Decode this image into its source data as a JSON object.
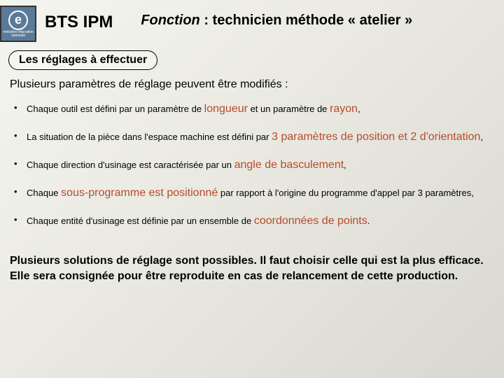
{
  "header": {
    "logo_letter": "e",
    "logo_caption": "ministère\néducation\nnationale",
    "title": "BTS IPM",
    "subtitle_prefix": "Fonction",
    "subtitle_rest": " : technicien méthode « atelier »"
  },
  "section_label": "Les réglages à effectuer",
  "intro": "Plusieurs paramètres de réglage peuvent être modifiés :",
  "bullets": [
    {
      "pre": "Chaque outil est défini par un paramètre de ",
      "hl1": "longueur",
      "mid": " et un paramètre de ",
      "hl2": "rayon",
      "post": ","
    },
    {
      "pre": "La situation de la pièce dans l'espace machine est défini par ",
      "hl1": "3 paramètres de position et 2 d'orientation",
      "mid": "",
      "hl2": "",
      "post": ","
    },
    {
      "pre": "Chaque direction d'usinage est caractérisée par un ",
      "hl1": "angle de basculement",
      "mid": "",
      "hl2": "",
      "post": ","
    },
    {
      "pre": "Chaque ",
      "hl1": "sous-programme est positionné",
      "mid": " par rapport à l'origine du programme d'appel par 3 paramètres,",
      "hl2": "",
      "post": ""
    },
    {
      "pre": "Chaque entité d'usinage est définie par un ensemble de ",
      "hl1": "coordonnées de points",
      "mid": "",
      "hl2": "",
      "post": "."
    }
  ],
  "conclusion": "Plusieurs solutions de réglage sont possibles. Il faut choisir celle qui est la plus efficace. Elle sera consignée pour être reproduite en cas de relancement de cette production.",
  "colors": {
    "highlight": "#b84a2a",
    "logo_bg": "#5a7a9a"
  }
}
